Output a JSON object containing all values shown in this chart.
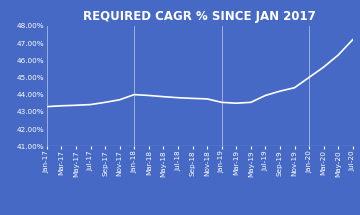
{
  "title": "REQUIRED CAGR % SINCE JAN 2017",
  "background_color": "#4569C4",
  "line_color": "#FFFFFF",
  "text_color": "#FFFFFF",
  "grid_color": "#FFFFFF",
  "ylim": [
    0.41,
    0.48
  ],
  "yticks": [
    0.41,
    0.42,
    0.43,
    0.44,
    0.45,
    0.46,
    0.47,
    0.48
  ],
  "x_labels": [
    "Jan-17",
    "Mar-17",
    "May-17",
    "Jul-17",
    "Sep-17",
    "Nov-17",
    "Jan-18",
    "Mar-18",
    "May-18",
    "Jul-18",
    "Sep-18",
    "Nov-18",
    "Jan-19",
    "Mar-19",
    "May-19",
    "Jul-19",
    "Sep-19",
    "Nov-19",
    "Jan-20",
    "Mar-20",
    "May-20",
    "Jul-20"
  ],
  "values": [
    0.433,
    0.4335,
    0.4338,
    0.4342,
    0.4355,
    0.437,
    0.44,
    0.4395,
    0.4388,
    0.4382,
    0.4378,
    0.4375,
    0.4355,
    0.435,
    0.4355,
    0.4395,
    0.442,
    0.444,
    0.45,
    0.456,
    0.463,
    0.472
  ],
  "vline_indices": [
    0,
    6,
    12,
    18
  ],
  "title_fontsize": 8.5,
  "tick_fontsize": 5.2
}
